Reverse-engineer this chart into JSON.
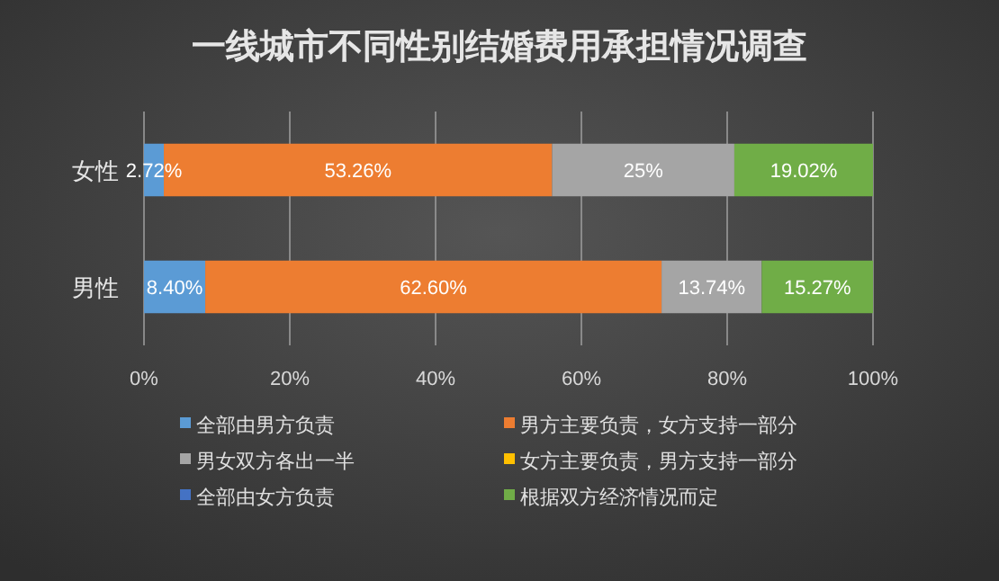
{
  "chart_data": {
    "type": "bar",
    "orientation": "horizontal",
    "stacked": true,
    "title": "一线城市不同性别结婚费用承担情况调查",
    "categories": [
      "女性",
      "男性"
    ],
    "series": [
      {
        "name": "全部由男方负责",
        "color": "#5b9bd5",
        "values": [
          2.72,
          8.4
        ],
        "value_labels": [
          "2.72%",
          "8.40%"
        ]
      },
      {
        "name": "男方主要负责，女方支持一部分",
        "color": "#ed7d31",
        "values": [
          53.26,
          62.6
        ],
        "value_labels": [
          "53.26%",
          "62.60%"
        ]
      },
      {
        "name": "男女双方各出一半",
        "color": "#a5a5a5",
        "values": [
          25,
          13.74
        ],
        "value_labels": [
          "25%",
          "13.74%"
        ]
      },
      {
        "name": "女方主要负责，男方支持一部分",
        "color": "#ffc000",
        "values": [
          0,
          0
        ],
        "value_labels": [
          null,
          null
        ]
      },
      {
        "name": "全部由女方负责",
        "color": "#4472c4",
        "values": [
          0,
          0
        ],
        "value_labels": [
          null,
          null
        ]
      },
      {
        "name": "根据双方经济情况而定",
        "color": "#70ad47",
        "values": [
          19.02,
          15.27
        ],
        "value_labels": [
          "19.02%",
          "15.27%"
        ]
      }
    ],
    "xlim": [
      0,
      100
    ],
    "xticks": [
      {
        "value": 0,
        "label": "0%"
      },
      {
        "value": 20,
        "label": "20%"
      },
      {
        "value": 40,
        "label": "40%"
      },
      {
        "value": 60,
        "label": "60%"
      },
      {
        "value": 80,
        "label": "80%"
      },
      {
        "value": 100,
        "label": "100%"
      }
    ],
    "grid": "x",
    "legend": "bottom"
  }
}
